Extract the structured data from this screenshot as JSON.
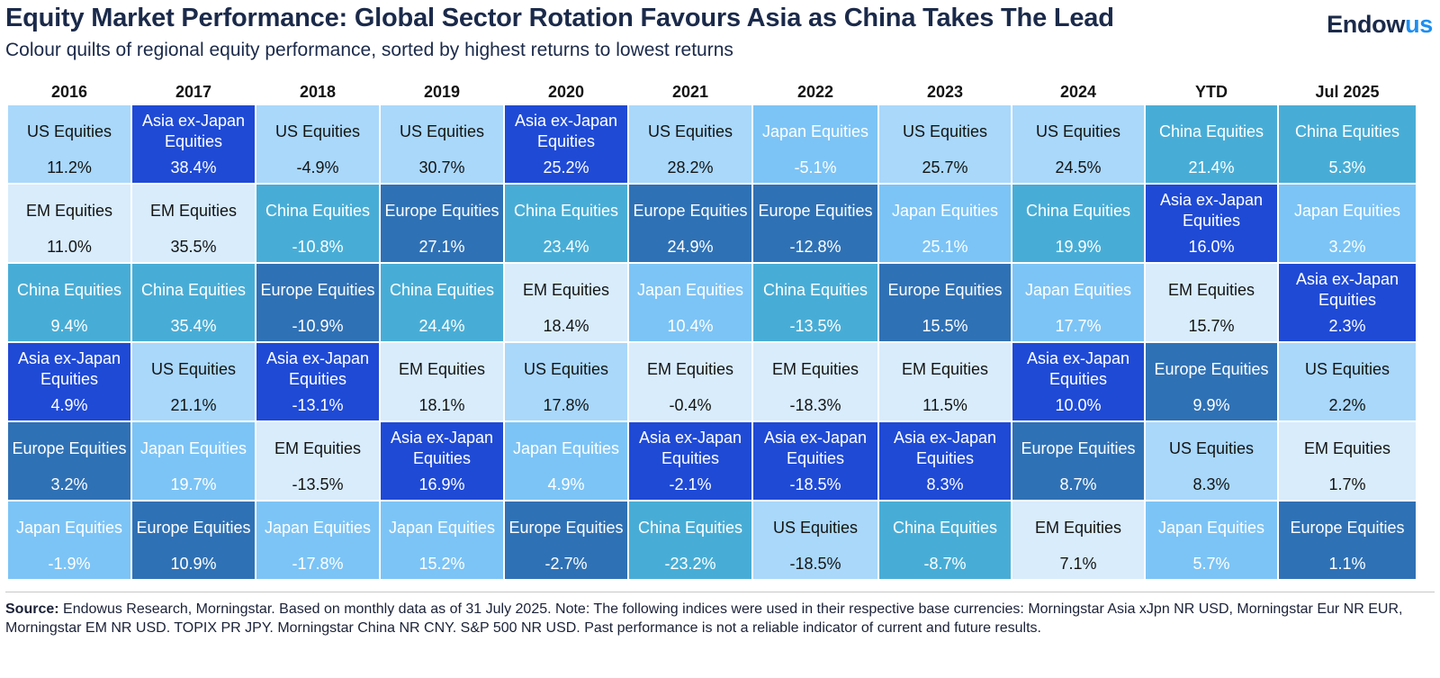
{
  "header": {
    "title": "Equity Market Performance: Global Sector Rotation Favours Asia as China Takes The Lead",
    "subtitle": "Colour quilts of regional equity performance, sorted by highest returns to lowest returns",
    "logo_main": "Endow",
    "logo_accent": "us"
  },
  "source": {
    "label": "Source:",
    "text": "Endowus Research, Morningstar. Based on monthly data as of 31 July 2025. Note: The following indices were used in their respective base currencies: Morningstar Asia xJpn NR USD, Morningstar Eur NR EUR, Morningstar EM NR USD. TOPIX PR JPY. Morningstar China NR CNY. S&P 500 NR USD. Past performance is not a reliable indicator of current and future results."
  },
  "colors": {
    "Asia ex-Japan Equities": "#1f4ad6",
    "China Equities": "#48add6",
    "Europe Equities": "#2f71b5",
    "Japan Equities": "#7cc4f6",
    "US Equities": "#a9d8fb",
    "EM Equities": "#d8ecfc"
  },
  "chart_data": {
    "type": "table",
    "title": "Equity Market Performance: Global Sector Rotation Favours Asia as China Takes The Lead",
    "subtitle": "Colour quilts of regional equity performance, sorted by highest returns to lowest returns",
    "columns": [
      {
        "period": "2016",
        "ranks": [
          {
            "name": "US Equities",
            "value": "11.2%"
          },
          {
            "name": "EM Equities",
            "value": "11.0%"
          },
          {
            "name": "China Equities",
            "value": "9.4%"
          },
          {
            "name": "Asia ex-Japan Equities",
            "value": "4.9%"
          },
          {
            "name": "Europe Equities",
            "value": "3.2%"
          },
          {
            "name": "Japan Equities",
            "value": "-1.9%"
          }
        ]
      },
      {
        "period": "2017",
        "ranks": [
          {
            "name": "Asia ex-Japan Equities",
            "value": "38.4%"
          },
          {
            "name": "EM Equities",
            "value": "35.5%"
          },
          {
            "name": "China Equities",
            "value": "35.4%"
          },
          {
            "name": "US Equities",
            "value": "21.1%"
          },
          {
            "name": "Japan Equities",
            "value": "19.7%"
          },
          {
            "name": "Europe Equities",
            "value": "10.9%"
          }
        ]
      },
      {
        "period": "2018",
        "ranks": [
          {
            "name": "US Equities",
            "value": "-4.9%"
          },
          {
            "name": "China Equities",
            "value": "-10.8%"
          },
          {
            "name": "Europe Equities",
            "value": "-10.9%"
          },
          {
            "name": "Asia ex-Japan Equities",
            "value": "-13.1%"
          },
          {
            "name": "EM Equities",
            "value": "-13.5%"
          },
          {
            "name": "Japan Equities",
            "value": "-17.8%"
          }
        ]
      },
      {
        "period": "2019",
        "ranks": [
          {
            "name": "US Equities",
            "value": "30.7%"
          },
          {
            "name": "Europe Equities",
            "value": "27.1%"
          },
          {
            "name": "China Equities",
            "value": "24.4%"
          },
          {
            "name": "EM Equities",
            "value": "18.1%"
          },
          {
            "name": "Asia ex-Japan Equities",
            "value": "16.9%"
          },
          {
            "name": "Japan Equities",
            "value": "15.2%"
          }
        ]
      },
      {
        "period": "2020",
        "ranks": [
          {
            "name": "Asia ex-Japan Equities",
            "value": "25.2%"
          },
          {
            "name": "China Equities",
            "value": "23.4%"
          },
          {
            "name": "EM Equities",
            "value": "18.4%"
          },
          {
            "name": "US Equities",
            "value": "17.8%"
          },
          {
            "name": "Japan Equities",
            "value": "4.9%"
          },
          {
            "name": "Europe Equities",
            "value": "-2.7%"
          }
        ]
      },
      {
        "period": "2021",
        "ranks": [
          {
            "name": "US Equities",
            "value": "28.2%"
          },
          {
            "name": "Europe Equities",
            "value": "24.9%"
          },
          {
            "name": "Japan Equities",
            "value": "10.4%"
          },
          {
            "name": "EM Equities",
            "value": "-0.4%"
          },
          {
            "name": "Asia ex-Japan Equities",
            "value": "-2.1%"
          },
          {
            "name": "China Equities",
            "value": "-23.2%"
          }
        ]
      },
      {
        "period": "2022",
        "ranks": [
          {
            "name": "Japan Equities",
            "value": "-5.1%"
          },
          {
            "name": "Europe Equities",
            "value": "-12.8%"
          },
          {
            "name": "China Equities",
            "value": "-13.5%"
          },
          {
            "name": "EM Equities",
            "value": "-18.3%"
          },
          {
            "name": "Asia ex-Japan Equities",
            "value": "-18.5%"
          },
          {
            "name": "US Equities",
            "value": "-18.5%"
          }
        ]
      },
      {
        "period": "2023",
        "ranks": [
          {
            "name": "US Equities",
            "value": "25.7%"
          },
          {
            "name": "Japan Equities",
            "value": "25.1%"
          },
          {
            "name": "Europe Equities",
            "value": "15.5%"
          },
          {
            "name": "EM Equities",
            "value": "11.5%"
          },
          {
            "name": "Asia ex-Japan Equities",
            "value": "8.3%"
          },
          {
            "name": "China Equities",
            "value": "-8.7%"
          }
        ]
      },
      {
        "period": "2024",
        "ranks": [
          {
            "name": "US Equities",
            "value": "24.5%"
          },
          {
            "name": "China Equities",
            "value": "19.9%"
          },
          {
            "name": "Japan Equities",
            "value": "17.7%"
          },
          {
            "name": "Asia ex-Japan Equities",
            "value": "10.0%"
          },
          {
            "name": "Europe Equities",
            "value": "8.7%"
          },
          {
            "name": "EM Equities",
            "value": "7.1%"
          }
        ]
      },
      {
        "period": "YTD",
        "ranks": [
          {
            "name": "China Equities",
            "value": "21.4%"
          },
          {
            "name": "Asia ex-Japan Equities",
            "value": "16.0%"
          },
          {
            "name": "EM Equities",
            "value": "15.7%"
          },
          {
            "name": "Europe Equities",
            "value": "9.9%"
          },
          {
            "name": "US Equities",
            "value": "8.3%"
          },
          {
            "name": "Japan Equities",
            "value": "5.7%"
          }
        ]
      },
      {
        "period": "Jul 2025",
        "ranks": [
          {
            "name": "China Equities",
            "value": "5.3%"
          },
          {
            "name": "Japan Equities",
            "value": "3.2%"
          },
          {
            "name": "Asia ex-Japan Equities",
            "value": "2.3%"
          },
          {
            "name": "US Equities",
            "value": "2.2%"
          },
          {
            "name": "EM Equities",
            "value": "1.7%"
          },
          {
            "name": "Europe Equities",
            "value": "1.1%"
          }
        ]
      }
    ]
  }
}
